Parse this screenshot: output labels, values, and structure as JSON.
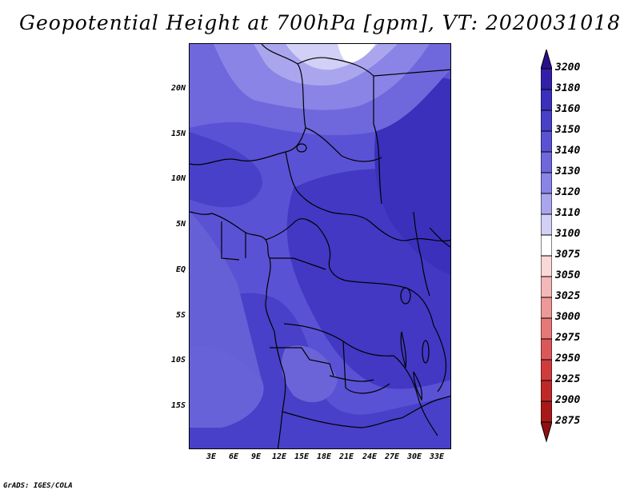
{
  "title": "Geopotential Height at 700hPa [gpm], VT: 2020031018",
  "credit": "GrADS: IGES/COLA",
  "map": {
    "lat_labels": [
      "20N",
      "15N",
      "10N",
      "5N",
      "EQ",
      "5S",
      "10S",
      "15S"
    ],
    "lon_labels": [
      "3E",
      "6E",
      "9E",
      "12E",
      "15E",
      "18E",
      "21E",
      "24E",
      "27E",
      "30E",
      "33E"
    ]
  },
  "colorbar": {
    "levels": [
      "3200",
      "3180",
      "3160",
      "3150",
      "3140",
      "3130",
      "3120",
      "3110",
      "3100",
      "3075",
      "3050",
      "3025",
      "3000",
      "2975",
      "2950",
      "2925",
      "2900",
      "2875"
    ],
    "colors": [
      "#2a0f8c",
      "#3320a8",
      "#3a30bc",
      "#4840c8",
      "#5a52d4",
      "#6f68dc",
      "#8a84e6",
      "#aaa6ee",
      "#d2d0f6",
      "#ffffff",
      "#fbd8d8",
      "#f5b8b8",
      "#ee9898",
      "#e67878",
      "#dc5858",
      "#d03c3c",
      "#c02828",
      "#a81818",
      "#901010"
    ]
  }
}
